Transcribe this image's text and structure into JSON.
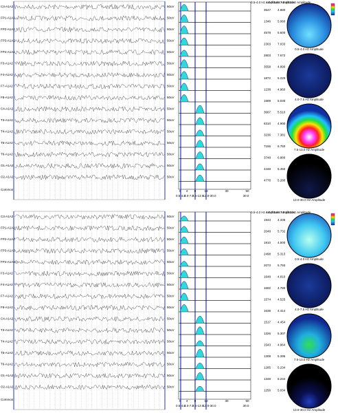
{
  "panels": [
    {
      "headers": [
        "0.5-4.0 Hz Amplitude",
        "4.0-7.5 Hz Amplitude",
        "7.5-13.0 Hz Amplitude"
      ],
      "channels": [
        {
          "label": "C3-A1A2",
          "scale": "50uV",
          "a": "3547",
          "b": "4.880"
        },
        {
          "label": "FP1-A1A2",
          "scale": "50uV",
          "a": "1346",
          "b": "5.060"
        },
        {
          "label": "FP2-A1A2",
          "scale": "50uV",
          "a": "4578",
          "b": "5.600"
        },
        {
          "label": "FP3-A1A2",
          "scale": "50uV",
          "a": "2303",
          "b": "7.033"
        },
        {
          "label": "FP4-A1A2",
          "scale": "50uV",
          "a": "2803",
          "b": "7.672"
        },
        {
          "label": "F3-A1A2",
          "scale": "50uV",
          "a": "3558",
          "b": "4.890"
        },
        {
          "label": "F4-A1A2",
          "scale": "50uV",
          "a": "1872",
          "b": "5.220"
        },
        {
          "label": "F7-A1A2",
          "scale": "50uV",
          "a": "1238",
          "b": "4.960"
        },
        {
          "label": "F8-A1A2",
          "scale": "50uV",
          "a": "1689",
          "b": "5.030"
        },
        {
          "label": "C4-A1A2",
          "scale": "50uV",
          "a": "3667",
          "b": "5.510"
        },
        {
          "label": "T3-A1A2",
          "scale": "50uV",
          "a": "6310",
          "b": "4.900"
        },
        {
          "label": "T4-A1A2",
          "scale": "50uV",
          "a": "3236",
          "b": "7.381"
        },
        {
          "label": "T5-A1A2",
          "scale": "50uV",
          "a": "7156",
          "b": "6.760"
        },
        {
          "label": "T6-A1A2",
          "scale": "50uV",
          "a": "3748",
          "b": "6.880"
        },
        {
          "label": "O1-A1A2",
          "scale": "50uV",
          "a": "4448",
          "b": "5.450"
        },
        {
          "label": "O2-A1A2",
          "scale": "50uV",
          "a": "4778",
          "b": "5.280"
        }
      ],
      "common": "Common",
      "spectrum_ticks": [
        "0",
        "4",
        "8",
        "13",
        "30",
        "50"
      ],
      "bands": [
        "0.5-4.0",
        "4.0-7.5",
        "7.5-13.0",
        "13.0-30.0",
        "30.0"
      ],
      "maps": [
        "0.5-4.0 Hz Amplitude",
        "4.0-7.5 Hz Amplitude",
        "7.5-13.0 Hz Amplitude",
        "13.0-30.0 Hz Amplitude"
      ]
    },
    {
      "headers": [
        "0.5-4.0 Hz Amplitude",
        "4.0-7.5 Hz Amplitude",
        "7.5-13.0 Hz Amplitude"
      ],
      "channels": [
        {
          "label": "C3-A1A2",
          "scale": "50uV",
          "a": "1943",
          "b": "4.335"
        },
        {
          "label": "FP1-A1A2",
          "scale": "50uV",
          "a": "2049",
          "b": "5.732"
        },
        {
          "label": "FP2-A1A2",
          "scale": "50uV",
          "a": "1910",
          "b": "4.500"
        },
        {
          "label": "FP3-A1A2",
          "scale": "50uV",
          "a": "2498",
          "b": "5.313"
        },
        {
          "label": "FP4-A1A2",
          "scale": "50uV",
          "a": "2073",
          "b": "5.793"
        },
        {
          "label": "F3-A1A2",
          "scale": "50uV",
          "a": "1648",
          "b": "4.810"
        },
        {
          "label": "F4-A1A2",
          "scale": "50uV",
          "a": "1692",
          "b": "4.780"
        },
        {
          "label": "F7-A1A2",
          "scale": "50uV",
          "a": "1574",
          "b": "4.525"
        },
        {
          "label": "F8-A1A2",
          "scale": "50uV",
          "a": "1639",
          "b": "4.414"
        },
        {
          "label": "C4-A1A2",
          "scale": "50uV",
          "a": "1517",
          "b": "4.454"
        },
        {
          "label": "T3-A1A2",
          "scale": "50uV",
          "a": "1326",
          "b": "5.307"
        },
        {
          "label": "T4-A1A2",
          "scale": "50uV",
          "a": "1543",
          "b": "4.964"
        },
        {
          "label": "T5-A1A2",
          "scale": "50uV",
          "a": "1308",
          "b": "5.395"
        },
        {
          "label": "T6-A1A2",
          "scale": "50uV",
          "a": "1285",
          "b": "5.234"
        },
        {
          "label": "O1-A1A2",
          "scale": "50uV",
          "a": "1348",
          "b": "5.234"
        },
        {
          "label": "O2-A1A2",
          "scale": "50uV",
          "a": "1256",
          "b": "5.034"
        }
      ],
      "common": "Common",
      "spectrum_ticks": [
        "0",
        "4",
        "8",
        "13",
        "30",
        "50"
      ],
      "bands": [
        "0.5-4.0",
        "4.0-7.5",
        "7.5-13.0",
        "13.0-30.0",
        "30.0"
      ],
      "maps": [
        "0.5-4.0 Hz Amplitude",
        "4.0-7.5 Hz Amplitude",
        "7.5-13.0 Hz Amplitude",
        "13.0-30.0 Hz Amplitude"
      ]
    }
  ]
}
